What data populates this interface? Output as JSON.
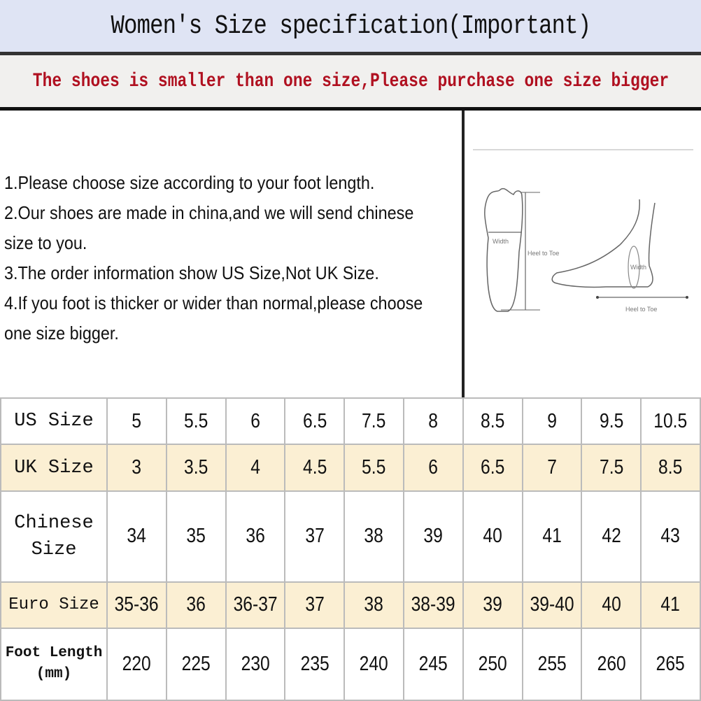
{
  "title": "Women's Size specification(Important)",
  "notice": "The shoes is smaller than one size,Please purchase one size bigger",
  "instructions": [
    "1.Please choose size according to your foot length.",
    "2.Our shoes are made in china,and we will send chinese size to you.",
    "3.The order information show US Size,Not UK Size.",
    "4.If you foot is thicker or wider than normal,please choose one size bigger."
  ],
  "diagram": {
    "top_width_label": "Width",
    "top_length_label": "Heel to Toe",
    "side_width_label": "Width",
    "side_length_label": "Heel to Toe"
  },
  "colors": {
    "notice": "#b01020",
    "title_band": "#dfe4f4",
    "alt_row": "#fbefd3"
  },
  "size_table": {
    "rows": [
      {
        "label": "US Size",
        "values": [
          "5",
          "5.5",
          "6",
          "6.5",
          "7.5",
          "8",
          "8.5",
          "9",
          "9.5",
          "10.5"
        ]
      },
      {
        "label": "UK Size",
        "values": [
          "3",
          "3.5",
          "4",
          "4.5",
          "5.5",
          "6",
          "6.5",
          "7",
          "7.5",
          "8.5"
        ]
      },
      {
        "label": "Chinese Size",
        "values": [
          "34",
          "35",
          "36",
          "37",
          "38",
          "39",
          "40",
          "41",
          "42",
          "43"
        ]
      },
      {
        "label": "Euro Size",
        "values": [
          "35-36",
          "36",
          "36-37",
          "37",
          "38",
          "38-39",
          "39",
          "39-40",
          "40",
          "41"
        ]
      },
      {
        "label": "Foot Length (mm)",
        "values": [
          "220",
          "225",
          "230",
          "235",
          "240",
          "245",
          "250",
          "255",
          "260",
          "265"
        ]
      }
    ]
  }
}
